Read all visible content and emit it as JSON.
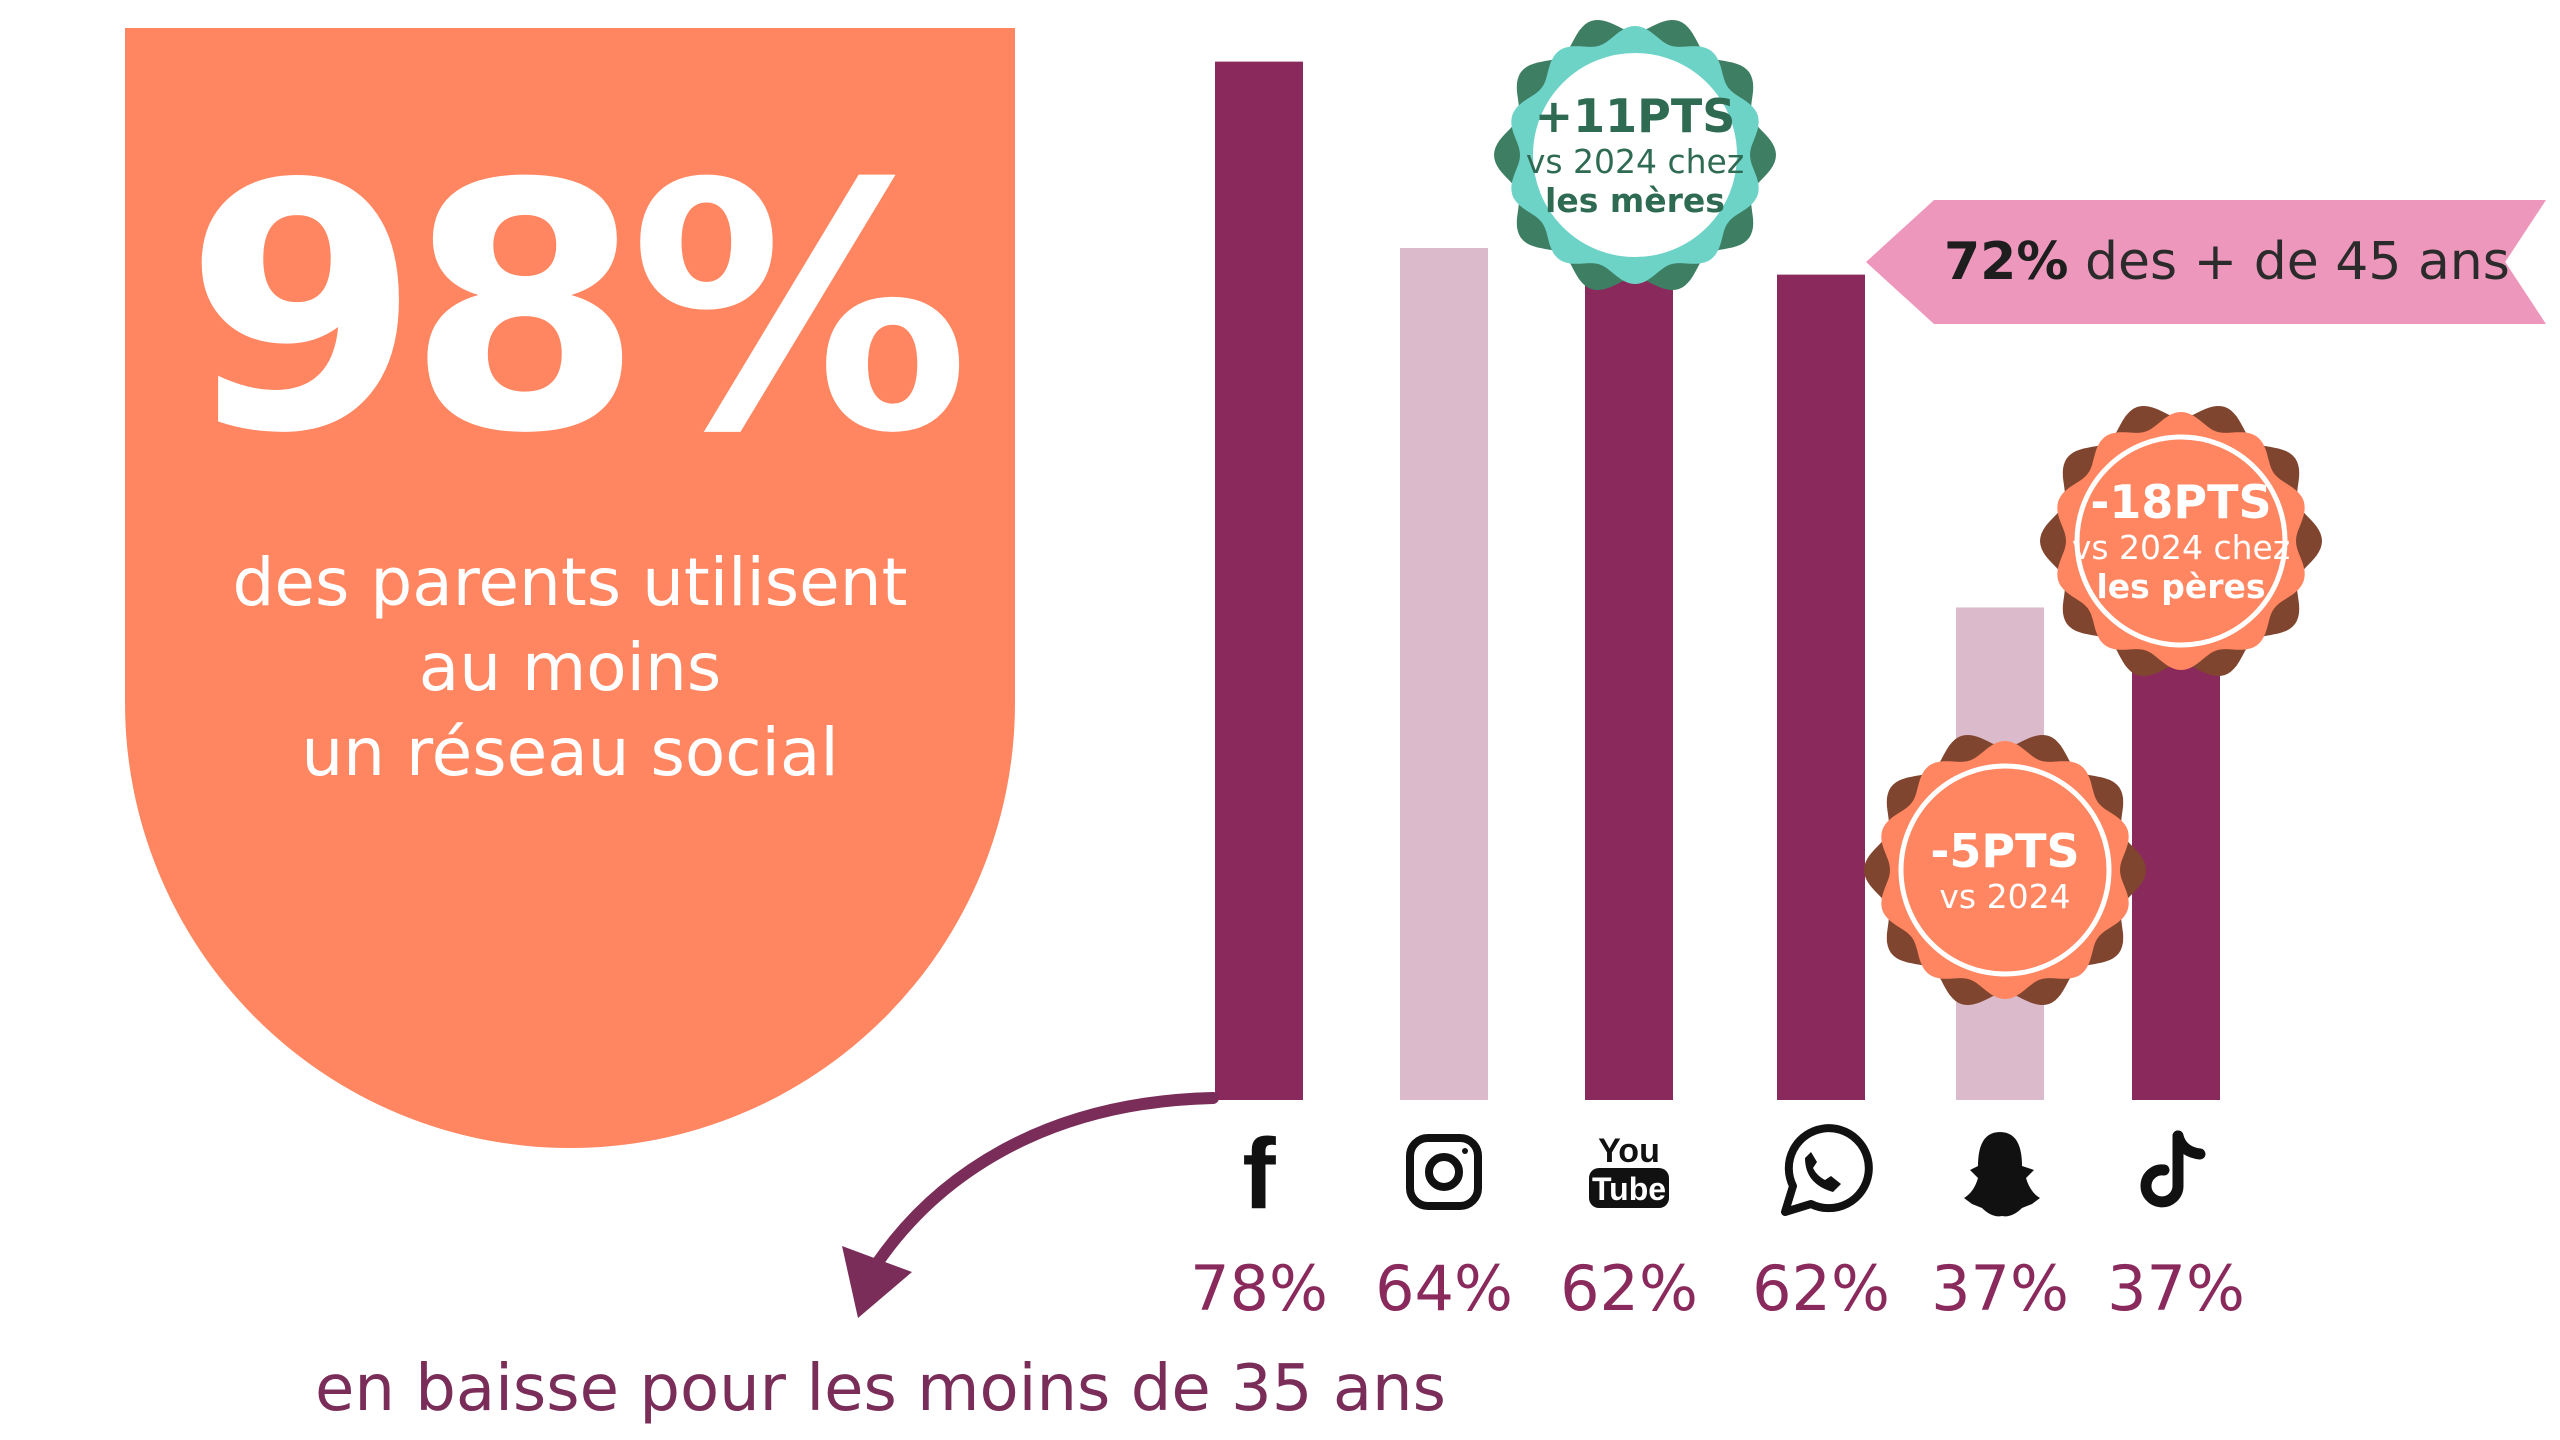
{
  "headline": {
    "value": "98%",
    "caption_lines": [
      "des parents utilisent",
      "au moins",
      "un réseau social"
    ]
  },
  "colors": {
    "shield": "#FF8661",
    "bar_dark": "#8A2A5C",
    "bar_light": "#DBBBCB",
    "label": "#8A2A5C",
    "arrow": "#7A2D58",
    "ribbon": "#EE97BD",
    "badge_teal": "#6ED3C7",
    "badge_teal_edge": "#3E7F64",
    "badge_orange": "#FF8661",
    "badge_orange_edge": "#80452F"
  },
  "chart_data": {
    "type": "bar",
    "categories": [
      "Facebook",
      "Instagram",
      "YouTube",
      "WhatsApp",
      "Snapchat",
      "TikTok"
    ],
    "icons": [
      "facebook-icon",
      "instagram-icon",
      "youtube-icon",
      "whatsapp-icon",
      "snapchat-icon",
      "tiktok-icon"
    ],
    "values": [
      78,
      64,
      62,
      62,
      37,
      37
    ],
    "value_labels": [
      "78%",
      "64%",
      "62%",
      "62%",
      "37%",
      "37%"
    ],
    "bar_shades": [
      "dark",
      "light",
      "dark",
      "dark",
      "light",
      "dark"
    ],
    "unit": "%",
    "ylim": [
      0,
      80
    ]
  },
  "annotations": {
    "youtube_badge": {
      "head": "+11PTS",
      "sub": "vs 2024 chez",
      "sub2": "les mères"
    },
    "whatsapp_ribbon": {
      "bold": "72%",
      "rest": " des + de 45 ans"
    },
    "tiktok_badge": {
      "head": "-18PTS",
      "sub": "vs 2024 chez",
      "sub2": "les pères"
    },
    "snapchat_badge": {
      "head": "-5PTS",
      "sub": "vs 2024"
    },
    "facebook_note": "en baisse pour les moins de 35 ans"
  }
}
